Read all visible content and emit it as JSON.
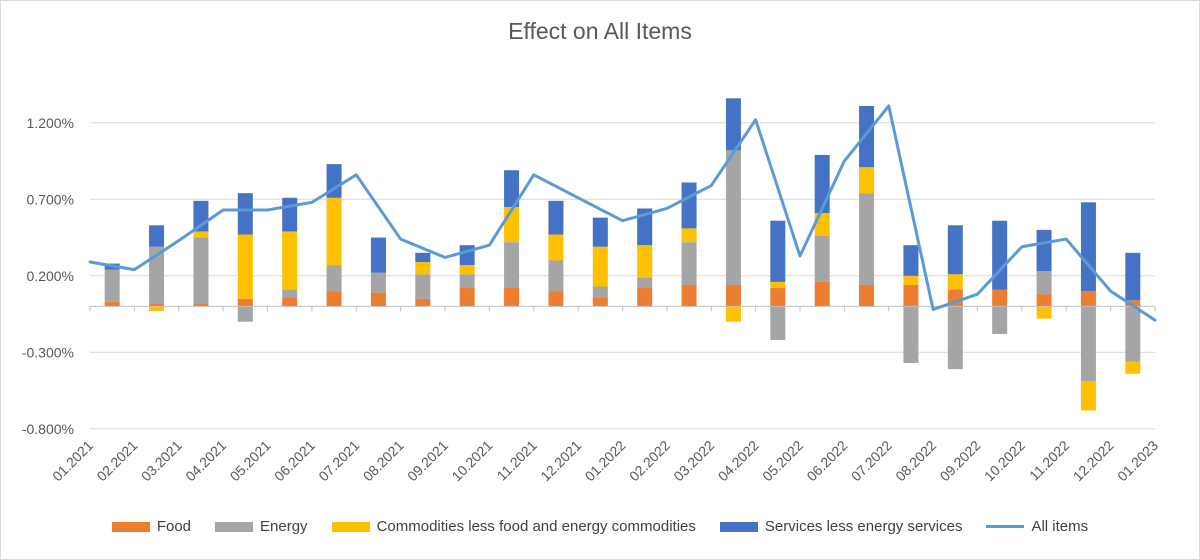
{
  "chart_data": {
    "type": "bar",
    "stacked": true,
    "title": "Effect on All Items",
    "xlabel": "",
    "ylabel": "",
    "ylim": [
      -0.8,
      1.4
    ],
    "yticks": [
      -0.8,
      -0.3,
      0.2,
      0.7,
      1.2
    ],
    "ytick_labels": [
      "-0.800%",
      "-0.300%",
      "0.200%",
      "0.700%",
      "1.200%"
    ],
    "categories": [
      "01.2021",
      "02.2021",
      "03.2021",
      "04.2021",
      "05.2021",
      "06.2021",
      "07.2021",
      "08.2021",
      "09.2021",
      "10.2021",
      "11.2021",
      "12.2021",
      "01.2022",
      "02.2022",
      "03.2022",
      "04.2022",
      "05.2022",
      "06.2022",
      "07.2022",
      "08.2022",
      "09.2022",
      "10.2022",
      "11.2022",
      "12.2022",
      "01.2023"
    ],
    "series": [
      {
        "name": "Food",
        "color": "#ED7D31",
        "kind": "bar",
        "values": [
          0.03,
          0.02,
          0.02,
          0.05,
          0.06,
          0.1,
          0.09,
          0.05,
          0.12,
          0.12,
          0.1,
          0.06,
          0.12,
          0.14,
          0.14,
          0.12,
          0.16,
          0.14,
          0.14,
          0.11,
          0.11,
          0.08,
          0.1,
          0.04,
          null
        ]
      },
      {
        "name": "Energy",
        "color": "#A5A5A5",
        "kind": "bar",
        "values": [
          0.21,
          0.37,
          0.43,
          -0.1,
          0.05,
          0.17,
          0.13,
          0.16,
          0.09,
          0.3,
          0.2,
          0.07,
          0.07,
          0.28,
          0.88,
          -0.22,
          0.3,
          0.6,
          -0.37,
          -0.41,
          -0.18,
          0.15,
          -0.49,
          -0.36,
          null
        ]
      },
      {
        "name": "Commodities less food and energy commodities",
        "color": "#FFC000",
        "kind": "bar",
        "values": [
          0.0,
          -0.03,
          0.04,
          0.42,
          0.38,
          0.44,
          0.0,
          0.08,
          0.06,
          0.23,
          0.17,
          0.26,
          0.21,
          0.09,
          -0.1,
          0.04,
          0.15,
          0.17,
          0.06,
          0.1,
          0.0,
          -0.08,
          -0.19,
          -0.08,
          null
        ]
      },
      {
        "name": "Services less energy services",
        "color": "#4472C4",
        "kind": "bar",
        "values": [
          0.04,
          0.14,
          0.2,
          0.27,
          0.22,
          0.22,
          0.23,
          0.06,
          0.13,
          0.24,
          0.22,
          0.19,
          0.24,
          0.3,
          0.34,
          0.4,
          0.38,
          0.4,
          0.2,
          0.32,
          0.45,
          0.27,
          0.58,
          0.31,
          null
        ]
      },
      {
        "name": "All items",
        "color": "#5B9BD5",
        "kind": "line",
        "values": [
          0.29,
          0.24,
          0.43,
          0.63,
          0.63,
          0.68,
          0.86,
          0.44,
          0.32,
          0.4,
          0.86,
          0.71,
          0.56,
          0.64,
          0.79,
          1.22,
          0.33,
          0.95,
          1.31,
          -0.02,
          0.08,
          0.39,
          0.44,
          0.1,
          -0.09
        ]
      }
    ],
    "grid": true,
    "legend": "bottom"
  }
}
